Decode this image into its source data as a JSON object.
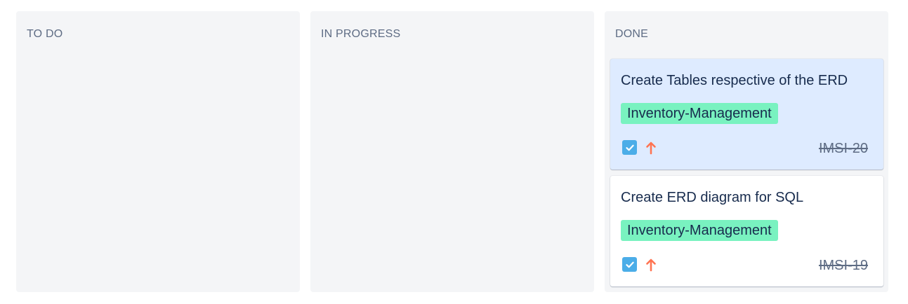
{
  "board": {
    "columns": [
      {
        "title": "TO DO",
        "cards": []
      },
      {
        "title": "IN PROGRESS",
        "cards": []
      },
      {
        "title": "DONE",
        "cards": [
          {
            "summary": "Create Tables respective of the ERD",
            "epic": "Inventory-Management",
            "issue_type_icon": "checkbox-icon",
            "priority_icon": "arrow-up-icon",
            "key": "IMSI-20",
            "selected": true
          },
          {
            "summary": "Create ERD diagram for SQL",
            "epic": "Inventory-Management",
            "issue_type_icon": "checkbox-icon",
            "priority_icon": "arrow-up-icon",
            "key": "IMSI-19",
            "selected": false
          }
        ]
      }
    ]
  },
  "colors": {
    "column_bg": "#f4f5f7",
    "selected_card_bg": "#deebff",
    "epic_bg": "#79f2c0",
    "issue_type_blue": "#4bade8",
    "priority_orange": "#ff7452",
    "text_primary": "#172b4d",
    "text_secondary": "#5e6c84"
  }
}
